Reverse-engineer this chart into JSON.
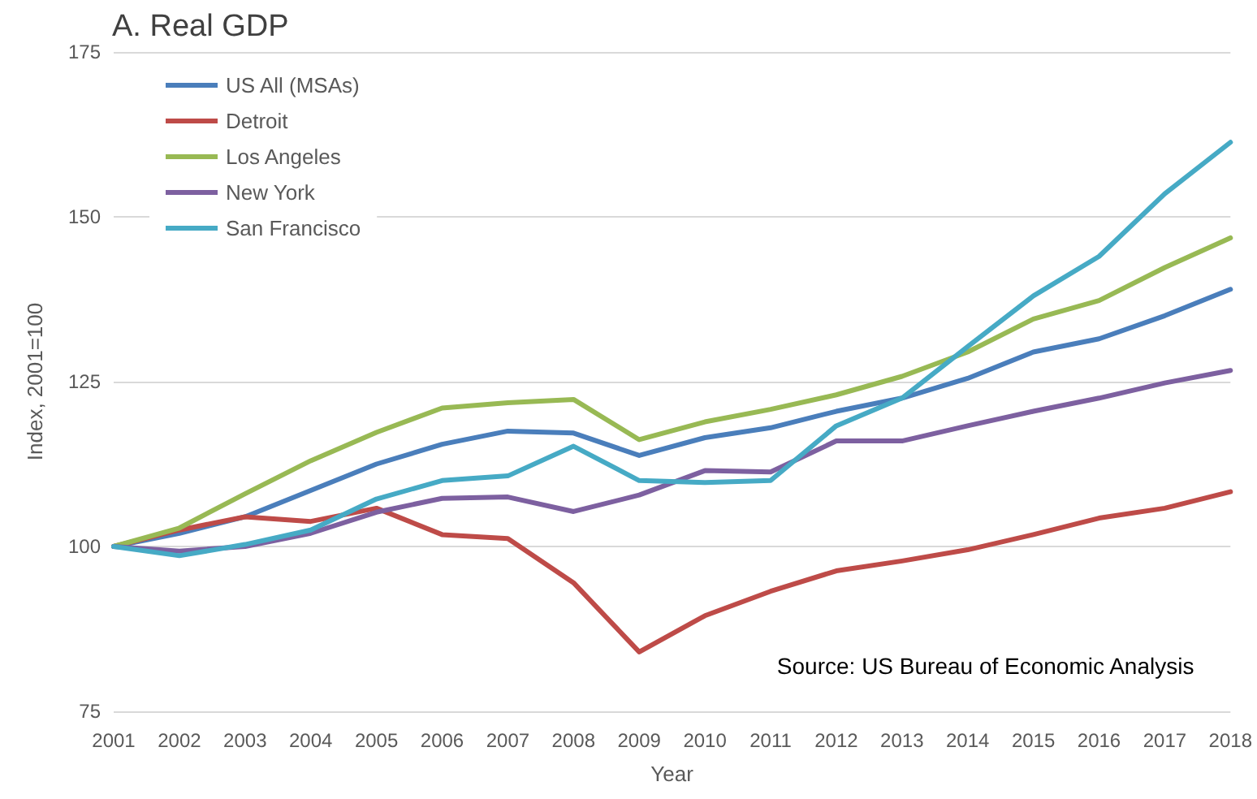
{
  "chart_data": {
    "type": "line",
    "title": "A. Real GDP",
    "xlabel": "Year",
    "ylabel": "Index, 2001=100",
    "categories": [
      "2001",
      "2002",
      "2003",
      "2004",
      "2005",
      "2006",
      "2007",
      "2008",
      "2009",
      "2010",
      "2011",
      "2012",
      "2013",
      "2014",
      "2015",
      "2016",
      "2017",
      "2018"
    ],
    "series": [
      {
        "name": "US All (MSAs)",
        "color": "#4a7ebb",
        "values": [
          100,
          102,
          104.5,
          108.5,
          112.5,
          115.5,
          117.5,
          117.2,
          113.8,
          116.5,
          118,
          120.5,
          122.5,
          125.5,
          129.5,
          131.5,
          135,
          139
        ]
      },
      {
        "name": "Detroit",
        "color": "#be4b48",
        "values": [
          100,
          102.5,
          104.5,
          103.8,
          105.8,
          101.8,
          101.2,
          94.5,
          84,
          89.5,
          93.2,
          96.3,
          97.8,
          99.5,
          101.8,
          104.3,
          105.8,
          108.3
        ]
      },
      {
        "name": "Los Angeles",
        "color": "#98b954",
        "values": [
          100,
          102.8,
          108,
          113,
          117.3,
          121,
          121.8,
          122.3,
          116.2,
          118.9,
          120.8,
          123,
          125.8,
          129.5,
          134.5,
          137.3,
          142.3,
          146.8
        ]
      },
      {
        "name": "New York",
        "color": "#7d60a0",
        "values": [
          100,
          99.3,
          100,
          102,
          105.2,
          107.3,
          107.5,
          105.3,
          107.8,
          111.5,
          111.3,
          116,
          116,
          118.3,
          120.5,
          122.5,
          124.8,
          126.7
        ]
      },
      {
        "name": "San Francisco",
        "color": "#46aac5",
        "values": [
          100,
          98.6,
          100.3,
          102.5,
          107.2,
          110,
          110.7,
          115.2,
          110,
          109.7,
          110,
          118.3,
          122.5,
          130.3,
          138,
          144,
          153.5,
          161.3
        ]
      }
    ],
    "ylim": [
      75,
      175
    ],
    "yticks": [
      75,
      100,
      125,
      150,
      175
    ],
    "grid": "y",
    "legend": "top left",
    "marker": "none",
    "line_style": "solid",
    "annotations": [
      "Source: US Bureau of Economic Analysis"
    ]
  }
}
